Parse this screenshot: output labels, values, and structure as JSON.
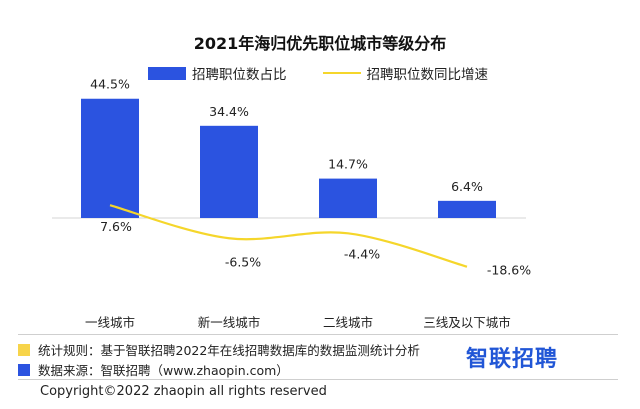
{
  "colors": {
    "bar": "#2b53e0",
    "line": "#f5d62b",
    "note_yellow": "#f7d44a",
    "note_blue": "#2b53e0",
    "brand": "#2156d6"
  },
  "chart_data": {
    "type": "bar",
    "title": "2021年海归优先职位城市等级分布",
    "categories": [
      "一线城市",
      "新一线城市",
      "二线城市",
      "三线及以下城市"
    ],
    "series": [
      {
        "name": "招聘职位数占比",
        "type": "bar",
        "values": [
          44.5,
          34.4,
          14.7,
          6.4
        ],
        "labels": [
          "44.5%",
          "34.4%",
          "14.7%",
          "6.4%"
        ]
      },
      {
        "name": "招聘职位数同比增速",
        "type": "line",
        "values": [
          7.6,
          -6.5,
          -4.4,
          -18.6
        ],
        "labels": [
          "7.6%",
          "-6.5%",
          "-4.4%",
          "-18.6%"
        ]
      }
    ],
    "legend_position": "top",
    "grid": false
  },
  "footer": {
    "note1": "统计规则：基于智联招聘2022年在线招聘数据库的数据监测统计分析",
    "note2": "数据来源：智联招聘（www.zhaopin.com）",
    "copyright": "Copyright©2022 zhaopin all rights reserved",
    "brand": "智联招聘"
  }
}
